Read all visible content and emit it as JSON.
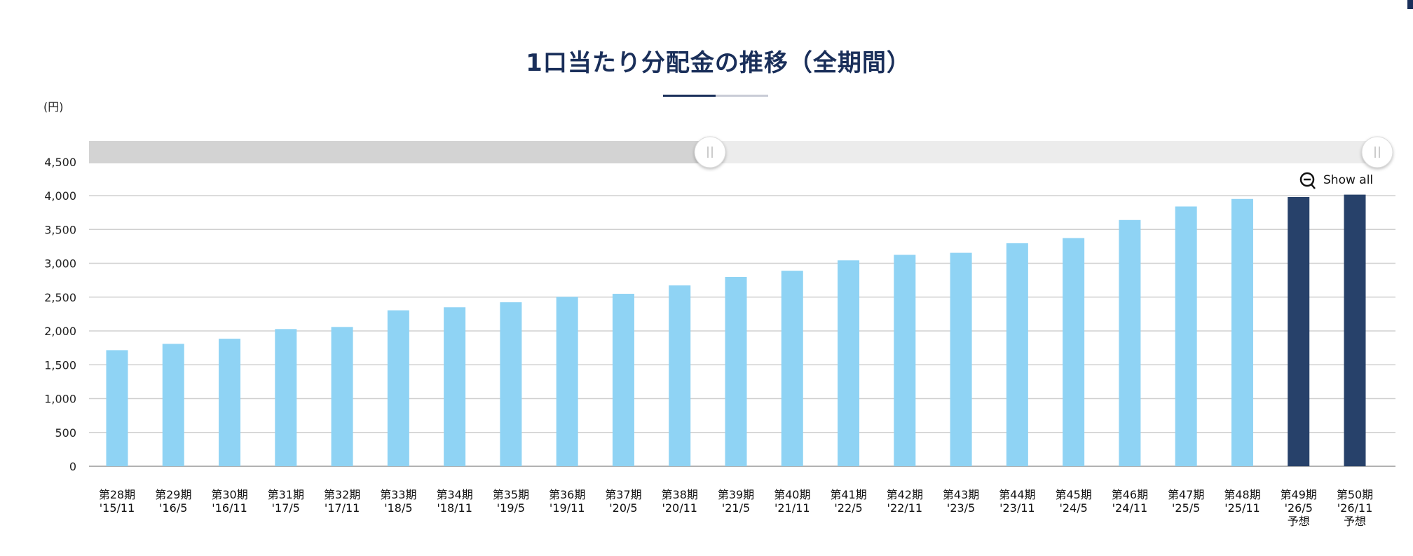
{
  "page": {
    "title": "1口当たり分配金の推移（全期間）"
  },
  "colors": {
    "actual": "#8fd3f4",
    "forecast": "#27416a",
    "title": "#1a2f5a",
    "accent_line": "#1a2f5a",
    "accent_line_light": "#c9ccd6"
  },
  "controls": {
    "show_all_label": "Show all",
    "zoom_out_icon": "magnifier-minus-icon",
    "range_slider_start": 0,
    "range_slider_end": 1
  },
  "chart_data": {
    "type": "bar",
    "title": "1口当たり分配金の推移（全期間）",
    "ylabel": "(円)",
    "xlabel": "",
    "ylim": [
      0,
      4500
    ],
    "yticks": [
      "0",
      "500",
      "1,000",
      "1,500",
      "2,000",
      "2,500",
      "3,000",
      "3,500",
      "4,000",
      "4,500"
    ],
    "ytick_values": [
      0,
      500,
      1000,
      1500,
      2000,
      2500,
      3000,
      3500,
      4000,
      4500
    ],
    "grid": true,
    "categories": [
      [
        "第28期",
        "'15/11"
      ],
      [
        "第29期",
        "'16/5"
      ],
      [
        "第30期",
        "'16/11"
      ],
      [
        "第31期",
        "'17/5"
      ],
      [
        "第32期",
        "'17/11"
      ],
      [
        "第33期",
        "'18/5"
      ],
      [
        "第34期",
        "'18/11"
      ],
      [
        "第35期",
        "'19/5"
      ],
      [
        "第36期",
        "'19/11"
      ],
      [
        "第37期",
        "'20/5"
      ],
      [
        "第38期",
        "'20/11"
      ],
      [
        "第39期",
        "'21/5"
      ],
      [
        "第40期",
        "'21/11"
      ],
      [
        "第41期",
        "'22/5"
      ],
      [
        "第42期",
        "'22/11"
      ],
      [
        "第43期",
        "'23/5"
      ],
      [
        "第44期",
        "'23/11"
      ],
      [
        "第45期",
        "'24/5"
      ],
      [
        "第46期",
        "'24/11"
      ],
      [
        "第47期",
        "'25/5"
      ],
      [
        "第48期",
        "'25/11"
      ],
      [
        "第49期",
        "'26/5",
        "予想"
      ],
      [
        "第50期",
        "'26/11",
        "予想"
      ]
    ],
    "values": [
      1716,
      1809,
      1885,
      2028,
      2059,
      2305,
      2350,
      2424,
      2504,
      2549,
      2673,
      2798,
      2890,
      3044,
      3125,
      3155,
      3297,
      3373,
      3640,
      3840,
      3951,
      3980,
      4015
    ],
    "forecast": [
      false,
      false,
      false,
      false,
      false,
      false,
      false,
      false,
      false,
      false,
      false,
      false,
      false,
      false,
      false,
      false,
      false,
      false,
      false,
      false,
      false,
      true,
      true
    ]
  }
}
